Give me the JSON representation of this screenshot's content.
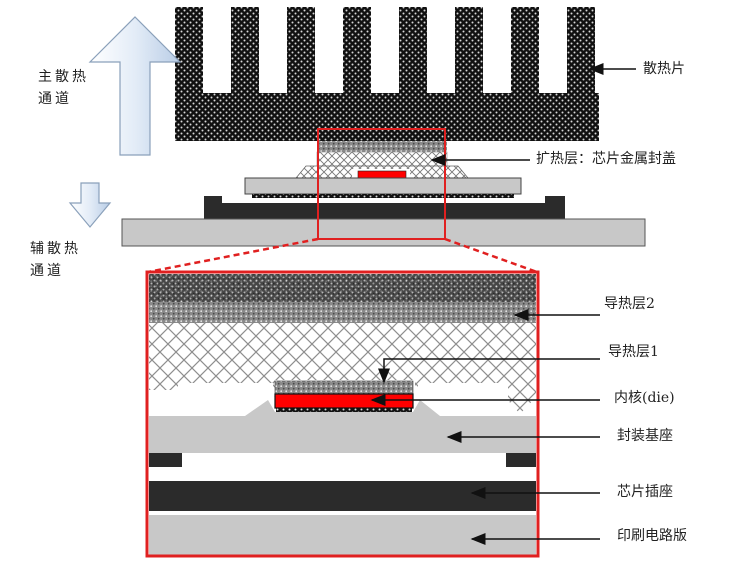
{
  "labels": {
    "main_path": "主散热通道",
    "aux_path": "辅散热通道",
    "heatsink": "散热片",
    "spreader": "扩热层：芯片金属封盖",
    "tim2": "导热层2",
    "tim1": "导热层1",
    "die": "内核(die)",
    "substrate": "封装基座",
    "socket": "芯片插座",
    "pcb": "印刷电路版"
  },
  "colors": {
    "highlight_red": "#e02020",
    "die_red": "#ff0000",
    "heatsink_dark": "#1a1a1a",
    "gray_light": "#c8c8c8",
    "socket_dark": "#2b2b2b",
    "arrow_blue": "#dbe7f5"
  }
}
